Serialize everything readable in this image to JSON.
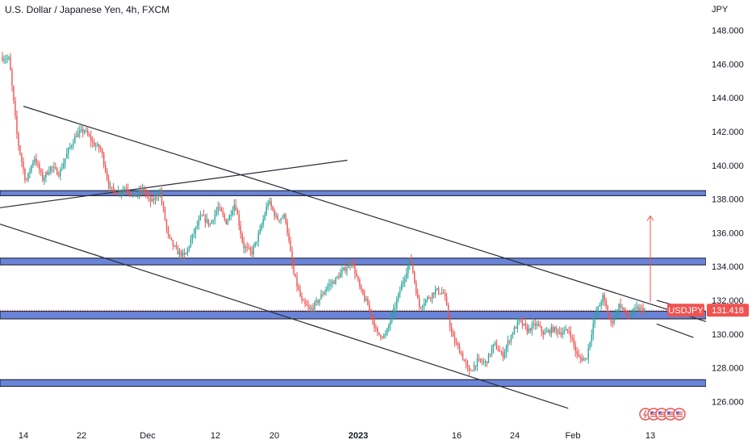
{
  "chart_title": "U.S. Dollar / Japanese Yen, 4h, FXCM",
  "currency_label": "JPY",
  "colors": {
    "up": "#26a69a",
    "down": "#ef5350",
    "zone_fill": "#4f6fd1",
    "zone_stroke": "#131722",
    "trendline": "#2a2e39",
    "price_line": "#ef5350",
    "arrow": "#ef5350",
    "axis_text": "#131722"
  },
  "chart_data": {
    "type": "candlestick",
    "title": "U.S. Dollar / Japanese Yen, 4h, FXCM",
    "symbol": "USDJPY",
    "y_unit": "JPY",
    "ylim": [
      125.4,
      148.6
    ],
    "y_ticks": [
      "148.000",
      "146.000",
      "144.000",
      "142.000",
      "140.000",
      "138.000",
      "136.000",
      "134.000",
      "132.000",
      "130.000",
      "128.000",
      "126.000"
    ],
    "x_ticks": [
      {
        "label": "14",
        "bold": false
      },
      {
        "label": "22",
        "bold": false
      },
      {
        "label": "Dec",
        "bold": false
      },
      {
        "label": "12",
        "bold": false
      },
      {
        "label": "20",
        "bold": false
      },
      {
        "label": "2023",
        "bold": true
      },
      {
        "label": "16",
        "bold": false
      },
      {
        "label": "24",
        "bold": false
      },
      {
        "label": "Feb",
        "bold": false
      },
      {
        "label": "13",
        "bold": false
      }
    ],
    "last_price": {
      "symbol": "USDJPY",
      "value": "131.418",
      "numeric": 131.418
    },
    "price_path": [
      146.4,
      146.3,
      141.5,
      139.0,
      140.5,
      139.2,
      139.9,
      139.5,
      140.8,
      141.8,
      142.1,
      141.3,
      140.9,
      138.6,
      138.4,
      138.7,
      138.1,
      138.6,
      137.8,
      138.5,
      135.8,
      134.9,
      134.6,
      135.9,
      137.0,
      136.5,
      137.5,
      136.6,
      137.8,
      135.2,
      134.8,
      136.1,
      137.9,
      136.8,
      137.0,
      133.6,
      131.9,
      131.4,
      132.0,
      132.8,
      133.2,
      133.8,
      134.3,
      132.6,
      131.6,
      130.0,
      129.9,
      131.4,
      133.0,
      134.5,
      131.6,
      132.1,
      132.6,
      132.4,
      129.8,
      128.9,
      127.7,
      128.4,
      128.3,
      129.4,
      128.7,
      129.9,
      130.8,
      130.2,
      130.6,
      130.0,
      130.3,
      130.1,
      130.2,
      128.6,
      128.5,
      131.0,
      132.2,
      130.6,
      131.8,
      131.0,
      131.5,
      131.418
    ],
    "zones": [
      {
        "low": 138.2,
        "high": 138.5
      },
      {
        "low": 134.1,
        "high": 134.5
      },
      {
        "low": 130.9,
        "high": 131.35
      },
      {
        "low": 126.9,
        "high": 127.3
      }
    ],
    "trendlines": [
      {
        "from": [
          "2022-11-14",
          143.5
        ],
        "to": [
          "2023-02-15",
          130.7
        ]
      },
      {
        "from": [
          "2022-11-06",
          137.2
        ],
        "to": [
          "2023-01-27",
          125.6
        ]
      },
      {
        "from": [
          "2022-11-06",
          137.2
        ],
        "to": [
          "2022-12-28",
          140.3
        ]
      },
      {
        "from": [
          "2023-02-08",
          132.0
        ],
        "to": [
          "2023-02-13",
          131.4
        ]
      },
      {
        "from": [
          "2023-02-08",
          130.6
        ],
        "to": [
          "2023-02-13",
          129.8
        ]
      }
    ],
    "projection_arrow": {
      "from": 131.9,
      "to": 137.0
    },
    "grid": false,
    "legend": "none"
  }
}
